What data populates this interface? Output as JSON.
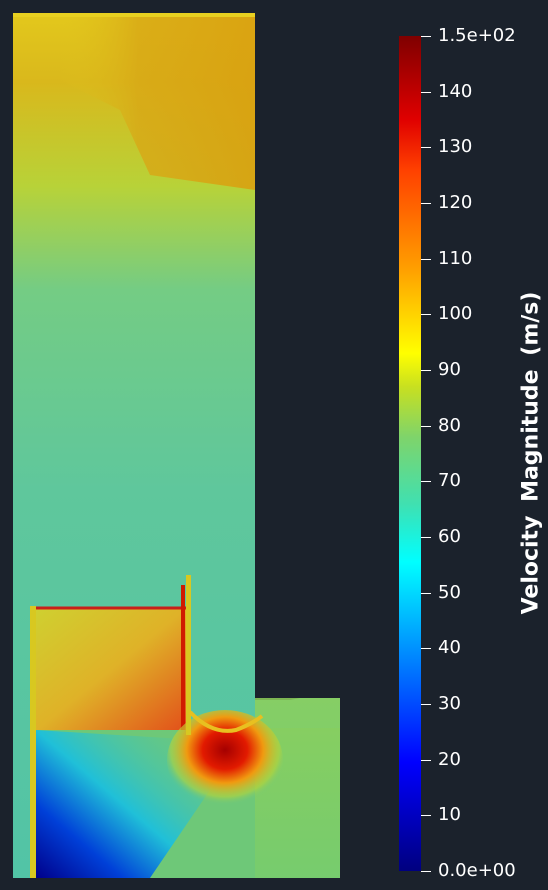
{
  "colorbar": {
    "title": "Velocity  Magnitude (m/s)",
    "range": [
      0,
      150
    ],
    "ticks": [
      {
        "value": 150,
        "label": "1.5e+02"
      },
      {
        "value": 140,
        "label": "140"
      },
      {
        "value": 130,
        "label": "130"
      },
      {
        "value": 120,
        "label": "120"
      },
      {
        "value": 110,
        "label": "110"
      },
      {
        "value": 100,
        "label": "100"
      },
      {
        "value": 90,
        "label": "90"
      },
      {
        "value": 80,
        "label": "80"
      },
      {
        "value": 70,
        "label": "70"
      },
      {
        "value": 60,
        "label": "60"
      },
      {
        "value": 50,
        "label": "50"
      },
      {
        "value": 40,
        "label": "40"
      },
      {
        "value": 30,
        "label": "30"
      },
      {
        "value": 20,
        "label": "20"
      },
      {
        "value": 10,
        "label": "10"
      },
      {
        "value": 0,
        "label": "0.0e+00"
      }
    ],
    "colormap": "jet"
  },
  "colors": {
    "background": "#1b222c",
    "tick": "#ffffff"
  }
}
